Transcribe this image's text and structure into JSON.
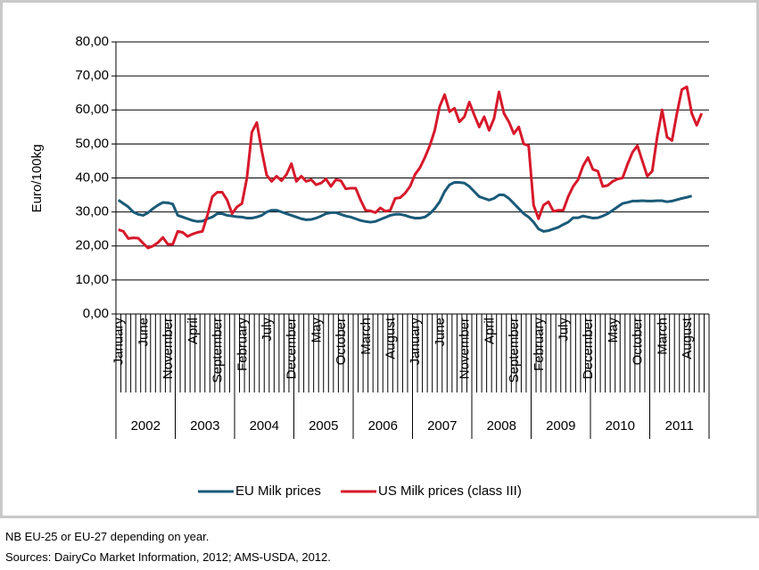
{
  "chart_data": {
    "type": "line",
    "ylabel": "Euro/100kg",
    "categories": [
      "January",
      null,
      null,
      null,
      null,
      "June",
      null,
      null,
      null,
      null,
      "November",
      null,
      null,
      null,
      null,
      "April",
      null,
      null,
      null,
      null,
      "September",
      null,
      null,
      null,
      null,
      "February",
      null,
      null,
      null,
      null,
      "July",
      null,
      null,
      null,
      null,
      "December",
      null,
      null,
      null,
      null,
      "May",
      null,
      null,
      null,
      null,
      "October",
      null,
      null,
      null,
      null,
      "March",
      null,
      null,
      null,
      null,
      "August",
      null,
      null,
      null,
      null,
      "January",
      null,
      null,
      null,
      null,
      "June",
      null,
      null,
      null,
      null,
      "November",
      null,
      null,
      null,
      null,
      "April",
      null,
      null,
      null,
      null,
      "September",
      null,
      null,
      null,
      null,
      "February",
      null,
      null,
      null,
      null,
      "July",
      null,
      null,
      null,
      null,
      "December",
      null,
      null,
      null,
      null,
      "May",
      null,
      null,
      null,
      null,
      "October",
      null,
      null,
      null,
      null,
      "March",
      null,
      null,
      null,
      null,
      "August",
      null,
      null,
      null,
      null
    ],
    "year_groups": [
      "2002",
      "2003",
      "2004",
      "2005",
      "2006",
      "2007",
      "2008",
      "2009",
      "2010",
      "2011"
    ],
    "series": [
      {
        "name": "EU Milk prices",
        "color": "#1a5a78",
        "values": [
          33.5,
          32.5,
          31.5,
          30,
          29.3,
          29,
          29.8,
          31,
          32,
          32.8,
          32.7,
          32.3,
          29,
          28.5,
          28,
          27.5,
          27.2,
          27.3,
          28,
          28.5,
          29.5,
          29.5,
          29,
          28.8,
          28.6,
          28.5,
          28.2,
          28.2,
          28.5,
          29,
          30,
          30.5,
          30.5,
          30,
          29.5,
          29,
          28.5,
          28,
          27.7,
          27.8,
          28.2,
          28.8,
          29.5,
          29.8,
          29.8,
          29.3,
          28.8,
          28.5,
          28,
          27.5,
          27.2,
          27,
          27.2,
          27.8,
          28.4,
          29,
          29.3,
          29.3,
          29,
          28.5,
          28.2,
          28.2,
          28.5,
          29.5,
          31,
          33,
          36,
          38,
          38.7,
          38.7,
          38.5,
          37.5,
          36,
          34.5,
          34,
          33.5,
          34,
          35,
          35,
          34,
          32.5,
          31,
          29.5,
          28.5,
          27,
          25,
          24.3,
          24.5,
          25,
          25.5,
          26.3,
          27,
          28.3,
          28.3,
          28.8,
          28.5,
          28.2,
          28.3,
          28.8,
          29.5,
          30.5,
          31.5,
          32.5,
          32.8,
          33.2,
          33.2,
          33.3,
          33.2,
          33.2,
          33.3,
          33.3,
          33,
          33.2,
          33.6,
          34,
          34.3,
          34.7,
          null,
          null,
          null
        ]
      },
      {
        "name": "US Milk prices (class III)",
        "color": "#d7192b",
        "values": [
          24.8,
          24.3,
          22.2,
          22.4,
          22.3,
          20.8,
          19.4,
          20,
          21,
          22.5,
          20.5,
          20.5,
          24.3,
          24,
          22.8,
          23.5,
          24,
          24.3,
          29,
          34.5,
          35.8,
          35.8,
          33.5,
          29.5,
          31.5,
          32.5,
          40,
          53.5,
          56.3,
          48,
          40.8,
          39,
          40.5,
          39.2,
          41,
          44.2,
          39,
          40.5,
          39,
          39.5,
          38,
          38.5,
          39.7,
          37.5,
          39.5,
          39.2,
          36.8,
          37,
          37,
          33.5,
          30.5,
          30.3,
          29.8,
          31.2,
          30.2,
          30.5,
          34,
          34.2,
          35.5,
          37.5,
          41,
          43,
          46,
          49.5,
          54,
          61,
          64.5,
          59.5,
          60.5,
          56.5,
          58,
          62.3,
          58.5,
          55,
          58,
          54,
          57.5,
          65.3,
          59,
          56.5,
          53,
          55,
          50,
          49.5,
          32,
          28,
          32,
          33,
          30.2,
          30.5,
          30.5,
          34.5,
          37.5,
          39.5,
          43.5,
          46,
          42.5,
          42,
          37.5,
          37.8,
          39,
          39.7,
          40,
          44,
          47.5,
          49.5,
          45,
          40.5,
          42,
          52,
          60,
          52,
          51,
          59,
          66,
          66.8,
          59,
          55.5,
          59,
          null
        ]
      }
    ],
    "ylim": [
      0,
      80
    ],
    "yticks": [
      {
        "value": 0,
        "label": "0,00"
      },
      {
        "value": 10,
        "label": "10,00"
      },
      {
        "value": 20,
        "label": "20,00"
      },
      {
        "value": 30,
        "label": "30,00"
      },
      {
        "value": 40,
        "label": "40,00"
      },
      {
        "value": 50,
        "label": "50,00"
      },
      {
        "value": 60,
        "label": "60,00"
      },
      {
        "value": 70,
        "label": "70,00"
      },
      {
        "value": 80,
        "label": "80,00"
      }
    ],
    "grid": true,
    "legend": "bottom"
  },
  "notes": [
    "NB EU-25 or EU-27 depending on year.",
    "Sources: DairyCo Market Information, 2012; AMS-USDA, 2012."
  ]
}
